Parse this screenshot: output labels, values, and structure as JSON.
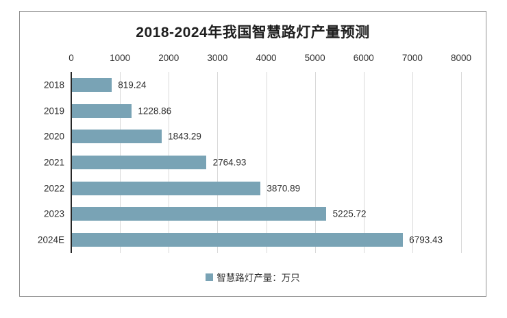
{
  "chart": {
    "frame_border_color": "#8f8f8f",
    "background_color": "#ffffff",
    "text_color": "#2e2e2e",
    "title_color": "#1f1f1f"
  },
  "chart_data": {
    "type": "bar",
    "orientation": "horizontal",
    "title": "2018-2024年我国智慧路灯产量预测",
    "categories": [
      "2018",
      "2019",
      "2020",
      "2021",
      "2022",
      "2023",
      "2024E"
    ],
    "values": [
      819.24,
      1228.86,
      1843.29,
      2764.93,
      3870.89,
      5225.72,
      6793.43
    ],
    "value_labels": [
      "819.24",
      "1228.86",
      "1843.29",
      "2764.93",
      "3870.89",
      "5225.72",
      "6793.43"
    ],
    "xlabel": "",
    "ylabel": "",
    "xlim": [
      0,
      8000
    ],
    "x_ticks": [
      0,
      1000,
      2000,
      3000,
      4000,
      5000,
      6000,
      7000,
      8000
    ],
    "x_tick_labels": [
      "0",
      "1000",
      "2000",
      "3000",
      "4000",
      "5000",
      "6000",
      "7000",
      "8000"
    ],
    "x_axis_position": "top",
    "grid": true,
    "grid_color": "#d9d9d9",
    "axis_color": "#262626",
    "bar_color": "#79a3b5",
    "legend": [
      "智慧路灯产量：万只"
    ],
    "legend_position": "bottom"
  }
}
